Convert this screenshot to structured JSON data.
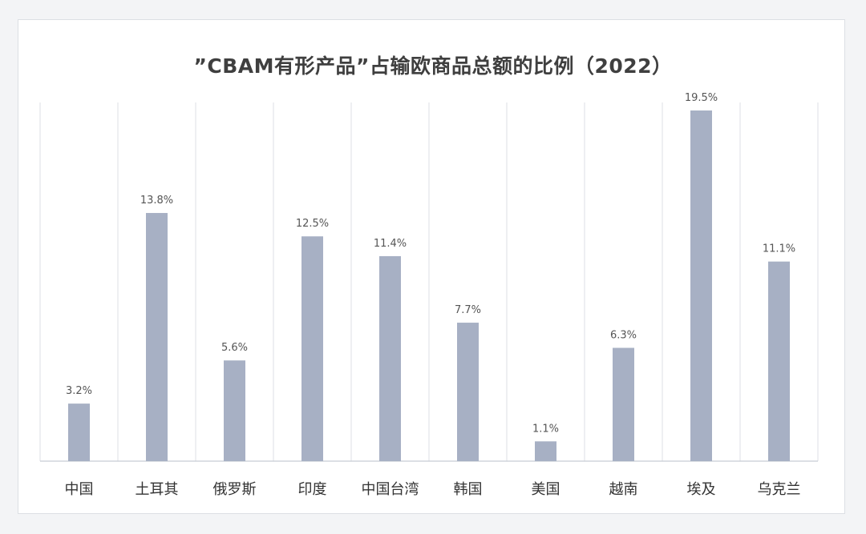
{
  "chart_data": {
    "type": "bar",
    "title": "”CBAM有形产品”占输欧商品总额的比例（2022）",
    "categories": [
      "中国",
      "土耳其",
      "俄罗斯",
      "印度",
      "中国台湾",
      "韩国",
      "美国",
      "越南",
      "埃及",
      "乌克兰"
    ],
    "values": [
      3.2,
      13.8,
      5.6,
      12.5,
      11.4,
      7.7,
      1.1,
      6.3,
      19.5,
      11.1
    ],
    "value_labels": [
      "3.2%",
      "13.8%",
      "5.6%",
      "12.5%",
      "11.4%",
      "7.7%",
      "1.1%",
      "6.3%",
      "19.5%",
      "11.1%"
    ],
    "ylim": [
      0,
      20
    ],
    "xlabel": "",
    "ylabel": "",
    "grid": "vertical separators",
    "legend": "none",
    "bar_color": "#a7b0c4",
    "grid_color": "#dcdfe4",
    "axis_color": "#c8ccd4"
  }
}
